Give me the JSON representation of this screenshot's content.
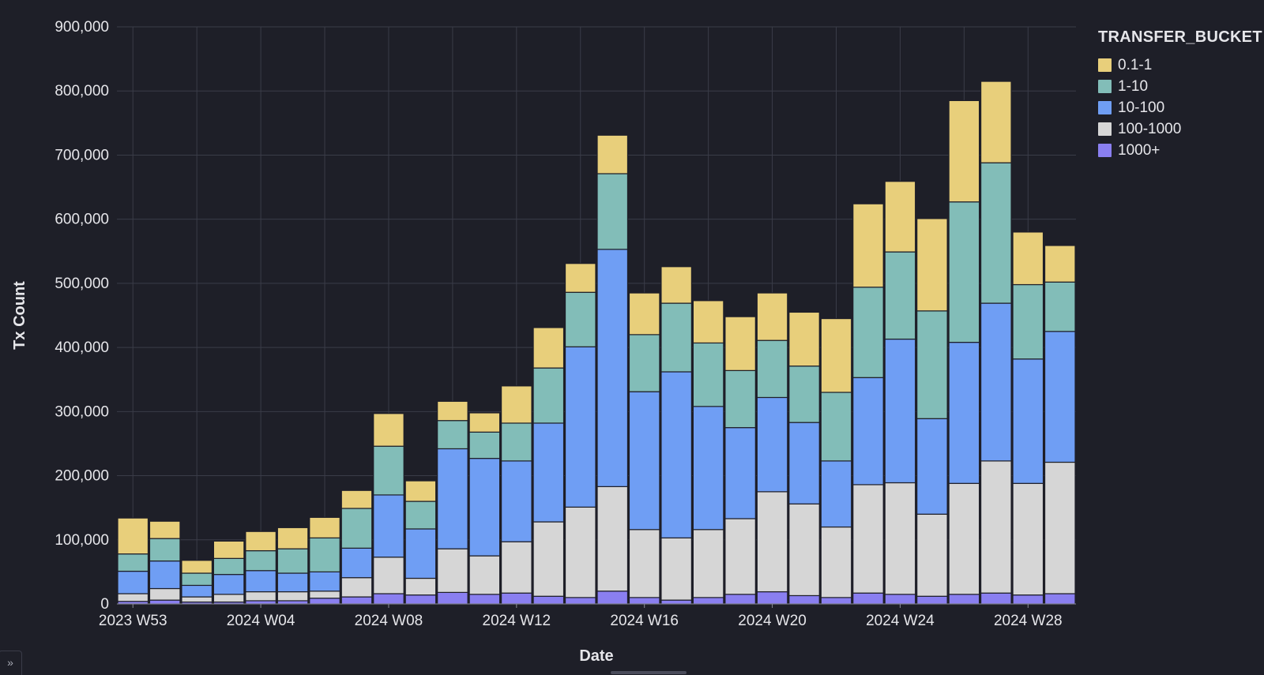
{
  "chart_data": {
    "type": "bar",
    "stacked": true,
    "xlabel": "Date",
    "ylabel": "Tx Count",
    "ylim": [
      0,
      900000
    ],
    "y_ticks": [
      "0",
      "100,000",
      "200,000",
      "300,000",
      "400,000",
      "500,000",
      "600,000",
      "700,000",
      "800,000",
      "900,000"
    ],
    "y_tick_values": [
      0,
      100000,
      200000,
      300000,
      400000,
      500000,
      600000,
      700000,
      800000,
      900000
    ],
    "x_tick_labels": [
      {
        "index": 0,
        "label": "2023 W53"
      },
      {
        "index": 4,
        "label": "2024 W04"
      },
      {
        "index": 8,
        "label": "2024 W08"
      },
      {
        "index": 12,
        "label": "2024 W12"
      },
      {
        "index": 16,
        "label": "2024 W16"
      },
      {
        "index": 20,
        "label": "2024 W20"
      },
      {
        "index": 24,
        "label": "2024 W24"
      },
      {
        "index": 28,
        "label": "2024 W28"
      }
    ],
    "categories": [
      "2023 W53",
      "2024 W01",
      "2024 W02",
      "2024 W03",
      "2024 W04",
      "2024 W05",
      "2024 W06",
      "2024 W07",
      "2024 W08",
      "2024 W09",
      "2024 W10",
      "2024 W11",
      "2024 W12",
      "2024 W13",
      "2024 W14",
      "2024 W15",
      "2024 W16",
      "2024 W17",
      "2024 W18",
      "2024 W19",
      "2024 W20",
      "2024 W21",
      "2024 W22",
      "2024 W23",
      "2024 W24",
      "2024 W25",
      "2024 W26",
      "2024 W27",
      "2024 W28",
      "2024 W29"
    ],
    "legend_title": "TRANSFER_BUCKET",
    "legend_position": "right",
    "grid": true,
    "series": [
      {
        "name": "1000+",
        "color": "#8a7ff0",
        "values": [
          4000,
          6000,
          3000,
          3000,
          5000,
          5000,
          9000,
          11000,
          16000,
          14000,
          18000,
          15000,
          17000,
          12000,
          10000,
          20000,
          10000,
          6000,
          10000,
          15000,
          19000,
          13000,
          10000,
          17000,
          15000,
          12000,
          15000,
          17000,
          14000,
          16000
        ]
      },
      {
        "name": "100-1000",
        "color": "#d6d6d6",
        "values": [
          12000,
          18000,
          8000,
          12000,
          14000,
          14000,
          11000,
          30000,
          57000,
          26000,
          68000,
          60000,
          80000,
          116000,
          141000,
          163000,
          106000,
          97000,
          106000,
          118000,
          156000,
          143000,
          110000,
          169000,
          174000,
          128000,
          173000,
          206000,
          174000,
          205000
        ]
      },
      {
        "name": "10-100",
        "color": "#6f9ef4",
        "values": [
          35000,
          43000,
          18000,
          31000,
          33000,
          29000,
          30000,
          46000,
          97000,
          77000,
          156000,
          152000,
          126000,
          154000,
          250000,
          370000,
          215000,
          259000,
          192000,
          142000,
          147000,
          127000,
          103000,
          167000,
          224000,
          149000,
          220000,
          246000,
          194000,
          204000
        ]
      },
      {
        "name": "1-10",
        "color": "#82bdb8",
        "values": [
          27000,
          35000,
          19000,
          25000,
          31000,
          38000,
          53000,
          62000,
          76000,
          43000,
          44000,
          41000,
          59000,
          86000,
          85000,
          118000,
          89000,
          107000,
          99000,
          89000,
          89000,
          88000,
          107000,
          141000,
          136000,
          168000,
          219000,
          219000,
          116000,
          77000
        ]
      },
      {
        "name": "0.1-1",
        "color": "#e8cf7b",
        "values": [
          56000,
          27000,
          20000,
          27000,
          30000,
          33000,
          32000,
          28000,
          51000,
          32000,
          30000,
          30000,
          58000,
          63000,
          45000,
          60000,
          65000,
          57000,
          66000,
          84000,
          74000,
          84000,
          115000,
          130000,
          110000,
          144000,
          158000,
          127000,
          82000,
          57000
        ]
      }
    ]
  },
  "ui": {
    "expand_icon": "»"
  }
}
